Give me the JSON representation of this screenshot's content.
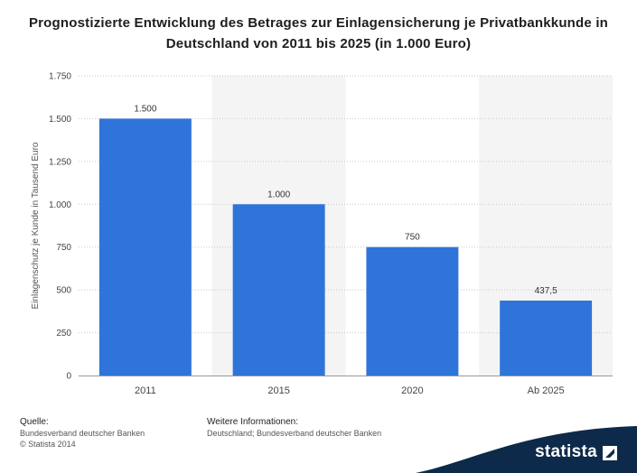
{
  "title": "Prognostizierte Entwicklung des Betrages zur Einlagensicherung je Privatbankkunde in Deutschland von 2011 bis 2025 (in 1.000 Euro)",
  "chart_data": {
    "type": "bar",
    "title": "Prognostizierte Entwicklung des Betrages zur Einlagensicherung je Privatbankkunde in Deutschland von 2011 bis 2025 (in 1.000 Euro)",
    "categories": [
      "2011",
      "2015",
      "2020",
      "Ab 2025"
    ],
    "values": [
      1500,
      1000,
      750,
      437.5
    ],
    "value_labels": [
      "1.500",
      "1.000",
      "750",
      "437,5"
    ],
    "xlabel": "",
    "ylabel": "Einlagenschutz je Kunde in Tausend Euro",
    "ylim": [
      0,
      1750
    ],
    "yticks": [
      0,
      250,
      500,
      750,
      1000,
      1250,
      1500,
      1750
    ],
    "ytick_labels": [
      "0",
      "250",
      "500",
      "750",
      "1.000",
      "1.250",
      "1.500",
      "1.750"
    ],
    "grid": true,
    "bar_color": "#2f74d9"
  },
  "footer": {
    "sources_heading": "Quelle:",
    "sources_line1": "Bundesverband deutscher Banken",
    "sources_line2": "© Statista 2014",
    "info_heading": "Weitere Informationen:",
    "info_line1": "Deutschland; Bundesverband deutscher Banken"
  },
  "brand": {
    "name": "statista",
    "color": "#0e2a4a"
  }
}
